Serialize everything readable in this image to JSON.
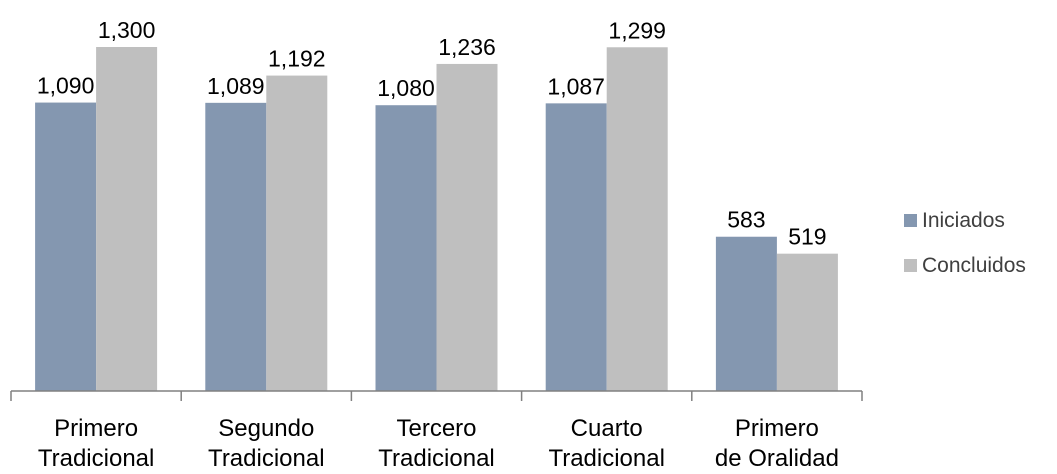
{
  "chart_data": {
    "type": "bar",
    "categories": [
      [
        "Primero",
        "Tradicional"
      ],
      [
        "Segundo",
        "Tradicional"
      ],
      [
        "Tercero",
        "Tradicional"
      ],
      [
        "Cuarto",
        "Tradicional"
      ],
      [
        "Primero",
        "de Oralidad"
      ]
    ],
    "series": [
      {
        "name": "Iniciados",
        "values": [
          1090,
          1089,
          1080,
          1087,
          583
        ],
        "labels": [
          "1,090",
          "1,089",
          "1,080",
          "1,087",
          "583"
        ],
        "color": "#8497b0"
      },
      {
        "name": "Concluidos",
        "values": [
          1300,
          1192,
          1236,
          1299,
          519
        ],
        "labels": [
          "1,300",
          "1,192",
          "1,236",
          "1,299",
          "519"
        ],
        "color": "#bfbfbf"
      }
    ],
    "title": "",
    "xlabel": "",
    "ylabel": "",
    "ylim": [
      0,
      1300
    ],
    "grid": false,
    "legend": "right",
    "axis_color": "#808080"
  }
}
